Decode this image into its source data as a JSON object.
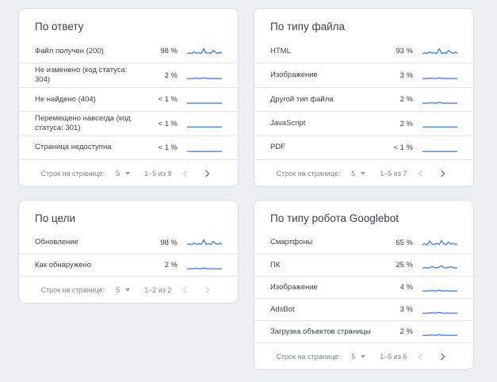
{
  "page": {
    "background": "#edf0f3"
  },
  "colors": {
    "spark": "#4285f4",
    "card_border": "#dadce0",
    "text": "#3c4043",
    "muted": "#80868b",
    "arrow_enabled": "#455a64",
    "arrow_disabled": "#c6cacd"
  },
  "cards": [
    {
      "id": "by-response",
      "title": "По ответу",
      "rows": [
        {
          "label": "Файл получен (200)",
          "value": "98 %",
          "spark": "high"
        },
        {
          "label": "Не изменено (код статуса: 304)",
          "value": "2 %",
          "spark": "low"
        },
        {
          "label": "Не найдено (404)",
          "value": "< 1 %",
          "spark": "flat"
        },
        {
          "label": "Перемещено навсегда (код статуса: 301)",
          "value": "< 1 %",
          "spark": "flat"
        },
        {
          "label": "Страница недоступна",
          "value": "< 1 %",
          "spark": "flat"
        }
      ],
      "pagination": {
        "rows_per_page_label": "Строк на странице:",
        "rows_per_page": "5",
        "range": "1–5 из 9",
        "prev_enabled": false,
        "next_enabled": true
      }
    },
    {
      "id": "by-file-type",
      "title": "По типу файла",
      "rows": [
        {
          "label": "HTML",
          "value": "93 %",
          "spark": "high"
        },
        {
          "label": "Изображение",
          "value": "3 %",
          "spark": "low"
        },
        {
          "label": "Другой тип файла",
          "value": "2 %",
          "spark": "low"
        },
        {
          "label": "JavaScript",
          "value": "2 %",
          "spark": "flat"
        },
        {
          "label": "PDF",
          "value": "< 1 %",
          "spark": "flat"
        }
      ],
      "pagination": {
        "rows_per_page_label": "Строк на странице:",
        "rows_per_page": "5",
        "range": "1–5 из 7",
        "prev_enabled": false,
        "next_enabled": true
      }
    },
    {
      "id": "by-purpose",
      "title": "По цели",
      "short": true,
      "rows": [
        {
          "label": "Обновление",
          "value": "98 %",
          "spark": "high"
        },
        {
          "label": "Как обнаружено",
          "value": "2 %",
          "spark": "low"
        }
      ],
      "pagination": {
        "rows_per_page_label": "Строк на странице:",
        "rows_per_page": "5",
        "range": "1–2 из 2",
        "prev_enabled": false,
        "next_enabled": false
      }
    },
    {
      "id": "by-googlebot-type",
      "title": "По типу робота Googlebot",
      "rows": [
        {
          "label": "Смартфоны",
          "value": "65 %",
          "spark": "high2"
        },
        {
          "label": "ПК",
          "value": "25 %",
          "spark": "mid"
        },
        {
          "label": "Изображение",
          "value": "4 %",
          "spark": "low"
        },
        {
          "label": "AdsBot",
          "value": "3 %",
          "spark": "low"
        },
        {
          "label": "Загрузка объектов страницы",
          "value": "2 %",
          "spark": "low"
        }
      ],
      "pagination": {
        "rows_per_page_label": "Строк на странице:",
        "rows_per_page": "5",
        "range": "1–5 из 6",
        "prev_enabled": false,
        "next_enabled": true
      }
    }
  ],
  "sparklines": {
    "high": "0,9.5 3,8.8 6,9.6 9,7.5 12,9.2 15,8.6 18,9.4 21,3.5 24,9.2 27,8.4 30,9.4 33,5.5 36,8.2 39,9.4 42,7.8 44,9.2",
    "high2": "0,9.8 3,8.6 6,9.8 9,5 12,9 15,9.6 18,8 21,9.6 24,4.5 27,8.8 30,9.6 33,6.5 36,9 39,8 42,9.6 44,9",
    "mid": "0,10.2 4,9.6 8,10.4 12,8.2 16,10 20,9.6 24,7.2 28,10.2 32,9.6 36,8.6 40,10.2 44,9.8",
    "low": "0,11.2 6,11.2 11,10.6 16,11.2 21,10.2 26,11.2 31,10.9 36,11.2 44,11.2",
    "flat": "0,11.2 44,11.2"
  }
}
